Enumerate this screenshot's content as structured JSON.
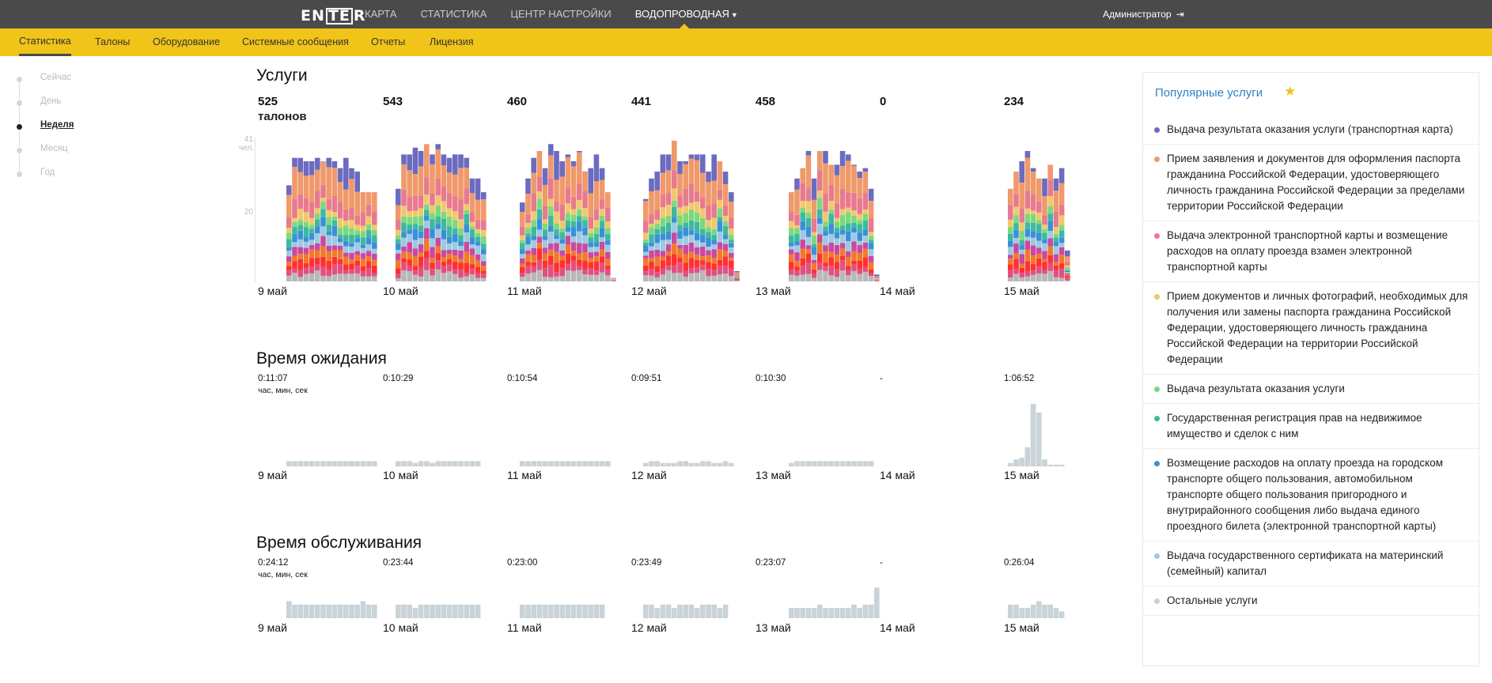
{
  "header": {
    "logo": {
      "pre": "EN",
      "boxed": "TE",
      "post": "R"
    },
    "nav": [
      {
        "label": "КАРТА"
      },
      {
        "label": "СТАТИСТИКА"
      },
      {
        "label": "ЦЕНТР НАСТРОЙКИ"
      },
      {
        "label": "ВОДОПРОВОДНАЯ"
      }
    ],
    "user": "Администратор",
    "exit_icon": "logout-icon"
  },
  "subnav": [
    {
      "label": "Статистика"
    },
    {
      "label": "Талоны"
    },
    {
      "label": "Оборудование"
    },
    {
      "label": "Системные сообщения"
    },
    {
      "label": "Отчеты"
    },
    {
      "label": "Лицензия"
    }
  ],
  "periods": [
    {
      "label": "Сейчас",
      "active": false
    },
    {
      "label": "День",
      "active": false
    },
    {
      "label": "Неделя",
      "active": true
    },
    {
      "label": "Месяц",
      "active": false
    },
    {
      "label": "Год",
      "active": false
    }
  ],
  "days": [
    "9 май",
    "10 май",
    "11 май",
    "12 май",
    "13 май",
    "14 май",
    "15 май"
  ],
  "services": {
    "title": "Услуги",
    "counts": [
      "525",
      "543",
      "460",
      "441",
      "458",
      "0",
      "234"
    ],
    "unit": "талонов",
    "axis_max": "41",
    "axis_unit": "чел.",
    "axis_mid": "20"
  },
  "wait": {
    "title": "Время ожидания",
    "values": [
      "0:11:07",
      "0:10:29",
      "0:10:54",
      "0:09:51",
      "0:10:30",
      "-",
      "1:06:52"
    ],
    "unit": "час, мин, сек"
  },
  "service_time": {
    "title": "Время обслуживания",
    "values": [
      "0:24:12",
      "0:23:44",
      "0:23:00",
      "0:23:49",
      "0:23:07",
      "-",
      "0:26:04"
    ],
    "unit": "час, мин, сек"
  },
  "popular": {
    "title": "Популярные услуги",
    "star_icon": "star-icon",
    "items": [
      {
        "label": "Выдача результата оказания услуги (транспортная карта)",
        "color": "#6b6bbf"
      },
      {
        "label": "Прием заявления и документов для оформления паспорта гражданина Российской Федерации, удостоверяющего личность гражданина Российской Федерации за пределами территории Российской Федерации",
        "color": "#f0996b"
      },
      {
        "label": "Выдача электронной транспортной карты и возмещение расходов на оплату проезда взамен электронной транспортной карты",
        "color": "#e87a8e"
      },
      {
        "label": "Прием документов и личных фотографий, необходимых для получения или замены паспорта гражданина Российской Федерации, удостоверяющего личность гражданина Российской Федерации на территории Российской Федерации",
        "color": "#f0c96b"
      },
      {
        "label": "Выдача результата оказания услуги",
        "color": "#7dd87d"
      },
      {
        "label": "Государственная регистрация прав на недвижимое имущество и сделок с ним",
        "color": "#3fb8a0"
      },
      {
        "label": "Возмещение расходов на оплату проезда на городском транспорте общего пользования, автомобильном транспорте общего пользования пригородного и внутрирайонного сообщения либо выдача единого проездного билета (электронной транспортной карты)",
        "color": "#3b8fd9"
      },
      {
        "label": "Выдача государственного сертификата на материнский (семейный) капитал",
        "color": "#9ec9e2"
      },
      {
        "label": "Остальные услуги",
        "color": "#d0d0d0"
      }
    ]
  },
  "chart_data": [
    {
      "type": "bar",
      "stacked": true,
      "title": "Услуги",
      "ylabel": "чел.",
      "ylim": [
        0,
        41
      ],
      "categories": [
        "9 май",
        "10 май",
        "11 май",
        "12 май",
        "13 май",
        "14 май",
        "15 май"
      ],
      "series_colors": [
        "#b8b8b8",
        "#e05080",
        "#ff3030",
        "#f07a2a",
        "#c84aa0",
        "#9ec9e2",
        "#3b8fd9",
        "#3fb8a0",
        "#7dd87d",
        "#f0c96b",
        "#e87a8e",
        "#f0996b",
        "#6b6bbf"
      ],
      "hourly_totals": [
        [
          28,
          36,
          36,
          35,
          35,
          36,
          35,
          36,
          35,
          33,
          36,
          33,
          32,
          26,
          26,
          26
        ],
        [
          27,
          37,
          37,
          39,
          38,
          40,
          37,
          40,
          37,
          36,
          37,
          37,
          36,
          30,
          30,
          26
        ],
        [
          23,
          30,
          36,
          38,
          33,
          40,
          38,
          35,
          37,
          35,
          38,
          32,
          33,
          37,
          33,
          26,
          1
        ],
        [
          24,
          30,
          32,
          37,
          37,
          41,
          35,
          35,
          37,
          37,
          37,
          32,
          37,
          35,
          32,
          26,
          3
        ],
        [
          26,
          30,
          33,
          38,
          30,
          38,
          38,
          34,
          34,
          38,
          37,
          34,
          32,
          33,
          27,
          2
        ],
        [],
        [
          27,
          32,
          35,
          38,
          33,
          30,
          30,
          34,
          30,
          33,
          9
        ]
      ]
    },
    {
      "type": "bar",
      "title": "Время ожидания",
      "ylabel": "час, мин, сек",
      "categories": [
        "9 май",
        "10 май",
        "11 май",
        "12 май",
        "13 май",
        "14 май",
        "15 май"
      ],
      "totals": [
        "0:11:07",
        "0:10:29",
        "0:10:54",
        "0:09:51",
        "0:10:30",
        "-",
        "1:06:52"
      ],
      "hourly_relative": [
        [
          3,
          3,
          3,
          3,
          3,
          3,
          3,
          3,
          3,
          3,
          3,
          3,
          3,
          3,
          3,
          3
        ],
        [
          3,
          3,
          3,
          2,
          3,
          3,
          2,
          3,
          3,
          3,
          3,
          3,
          3,
          3,
          3
        ],
        [
          3,
          3,
          3,
          3,
          3,
          3,
          3,
          3,
          3,
          3,
          3,
          3,
          3,
          3,
          3,
          3
        ],
        [
          2,
          3,
          3,
          2,
          2,
          2,
          3,
          3,
          2,
          2,
          3,
          3,
          2,
          2,
          3,
          2
        ],
        [
          2,
          3,
          3,
          3,
          3,
          3,
          3,
          3,
          3,
          3,
          3,
          3,
          3,
          3,
          3
        ],
        [],
        [
          2,
          4,
          5,
          11,
          36,
          31,
          4,
          1,
          1,
          1
        ]
      ]
    },
    {
      "type": "bar",
      "title": "Время обслуживания",
      "ylabel": "час, мин, сек",
      "categories": [
        "9 май",
        "10 май",
        "11 май",
        "12 май",
        "13 май",
        "14 май",
        "15 май"
      ],
      "totals": [
        "0:24:12",
        "0:23:44",
        "0:23:00",
        "0:23:49",
        "0:23:07",
        "-",
        "0:26:04"
      ],
      "hourly_relative": [
        [
          5,
          4,
          4,
          4,
          4,
          4,
          4,
          4,
          4,
          4,
          4,
          4,
          4,
          5,
          4,
          4
        ],
        [
          4,
          4,
          4,
          3,
          4,
          4,
          4,
          4,
          4,
          4,
          4,
          4,
          4,
          4,
          4
        ],
        [
          4,
          4,
          4,
          4,
          4,
          4,
          4,
          4,
          4,
          4,
          4,
          4,
          4,
          4,
          4
        ],
        [
          4,
          4,
          3,
          4,
          4,
          3,
          4,
          4,
          4,
          3,
          4,
          4,
          4,
          3,
          4
        ],
        [
          3,
          3,
          3,
          3,
          3,
          4,
          3,
          3,
          3,
          3,
          3,
          4,
          3,
          4,
          4,
          9
        ],
        [],
        [
          4,
          4,
          3,
          3,
          4,
          5,
          4,
          4,
          3,
          2
        ]
      ]
    }
  ]
}
